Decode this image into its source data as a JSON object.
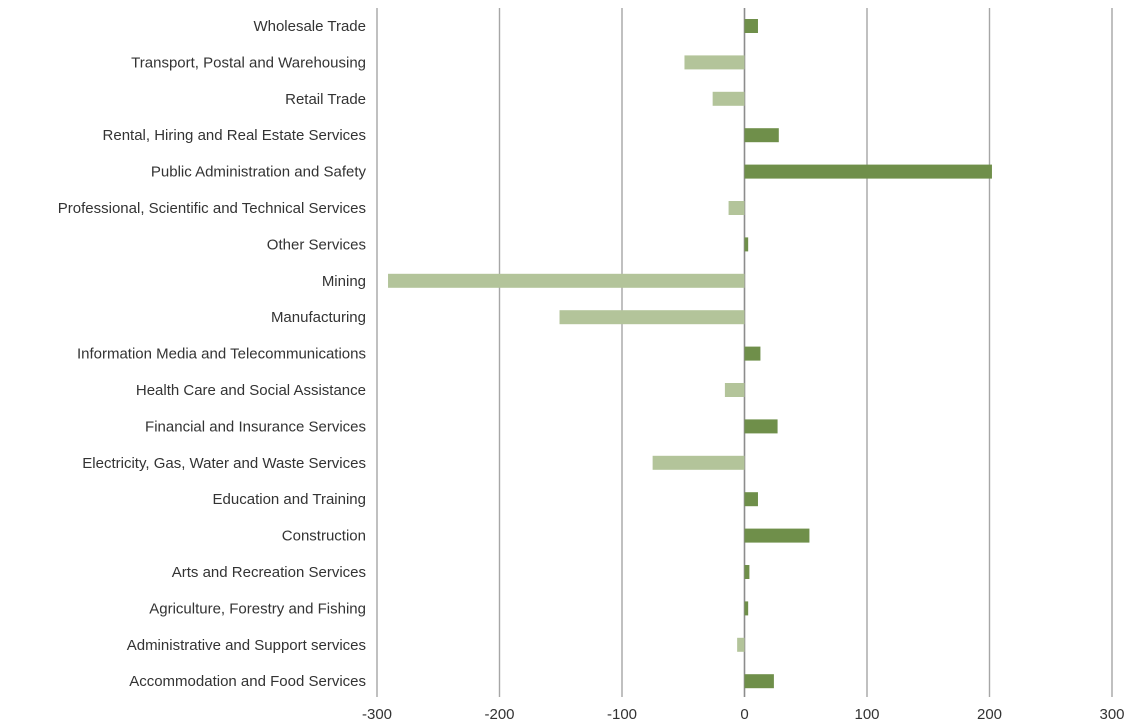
{
  "chart_data": {
    "type": "bar",
    "orientation": "horizontal",
    "title": "",
    "xlabel": "",
    "ylabel": "",
    "xlim": [
      -300,
      300
    ],
    "xticks": [
      -300,
      -200,
      -100,
      0,
      100,
      200,
      300
    ],
    "grid": "vertical",
    "legend": "none",
    "colors": {
      "positive": "#6f8f4a",
      "negative": "#b3c49a"
    },
    "categories": [
      "Wholesale Trade",
      "Transport, Postal and Warehousing",
      "Retail Trade",
      "Rental, Hiring and Real Estate Services",
      "Public Administration and Safety",
      "Professional, Scientific and Technical Services",
      "Other Services",
      "Mining",
      "Manufacturing",
      "Information Media and Telecommunications",
      "Health Care and Social Assistance",
      "Financial and Insurance Services",
      "Electricity, Gas, Water and Waste Services",
      "Education and Training",
      "Construction",
      "Arts and Recreation Services",
      "Agriculture, Forestry and Fishing",
      "Administrative and Support services",
      "Accommodation and Food Services"
    ],
    "values": [
      11,
      -49,
      -26,
      28,
      202,
      -13,
      3,
      -291,
      -151,
      13,
      -16,
      27,
      -75,
      11,
      53,
      4,
      3,
      -6,
      24
    ]
  }
}
